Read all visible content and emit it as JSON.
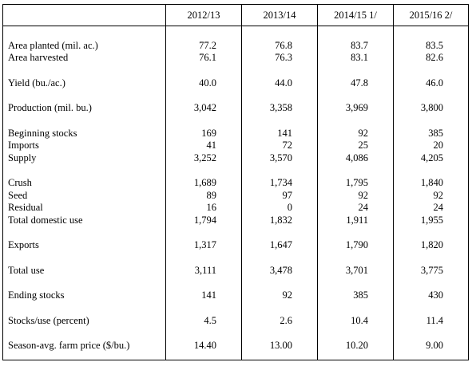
{
  "header": {
    "columns": [
      "",
      "2012/13",
      "2013/14",
      "2014/15 1/",
      "2015/16 2/"
    ]
  },
  "rows": [
    {
      "label": "Area planted (mil. ac.)",
      "values": [
        "77.2",
        "76.8",
        "83.7",
        "83.5"
      ]
    },
    {
      "label": "Area harvested",
      "values": [
        "76.1",
        "76.3",
        "83.1",
        "82.6"
      ]
    },
    {
      "label": "Yield (bu./ac.)",
      "values": [
        "40.0",
        "44.0",
        "47.8",
        "46.0"
      ]
    },
    {
      "label": "Production (mil. bu.)",
      "values": [
        "3,042",
        "3,358",
        "3,969",
        "3,800"
      ]
    },
    {
      "label": "Beginning stocks",
      "values": [
        "169",
        "141",
        "92",
        "385"
      ]
    },
    {
      "label": "Imports",
      "values": [
        "41",
        "72",
        "25",
        "20"
      ]
    },
    {
      "label": "Supply",
      "values": [
        "3,252",
        "3,570",
        "4,086",
        "4,205"
      ]
    },
    {
      "label": "Crush",
      "values": [
        "1,689",
        "1,734",
        "1,795",
        "1,840"
      ]
    },
    {
      "label": "Seed",
      "values": [
        "89",
        "97",
        "92",
        "92"
      ]
    },
    {
      "label": "Residual",
      "values": [
        "16",
        "0",
        "24",
        "24"
      ]
    },
    {
      "label": "Total domestic use",
      "values": [
        "1,794",
        "1,832",
        "1,911",
        "1,955"
      ]
    },
    {
      "label": "Exports",
      "values": [
        "1,317",
        "1,647",
        "1,790",
        "1,820"
      ]
    },
    {
      "label": "Total use",
      "values": [
        "3,111",
        "3,478",
        "3,701",
        "3,775"
      ]
    },
    {
      "label": "Ending stocks",
      "values": [
        "141",
        "92",
        "385",
        "430"
      ]
    },
    {
      "label": "Stocks/use (percent)",
      "values": [
        "4.5",
        "2.6",
        "10.4",
        "11.4"
      ]
    },
    {
      "label": "Season-avg. farm price ($/bu.)",
      "values": [
        "14.40",
        "13.00",
        "10.20",
        "9.00"
      ]
    }
  ]
}
